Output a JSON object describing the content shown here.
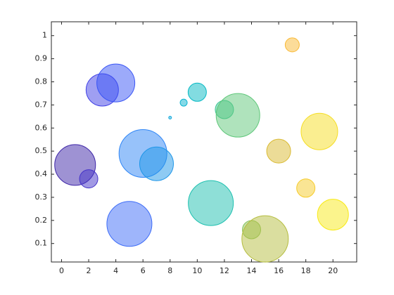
{
  "chart_data": {
    "type": "scatter",
    "x": [
      1,
      2,
      3,
      4,
      5,
      6,
      7,
      8,
      9,
      10,
      11,
      12,
      13,
      14,
      15,
      16,
      17,
      18,
      19,
      20
    ],
    "y": [
      0.44,
      0.38,
      0.765,
      0.795,
      0.185,
      0.49,
      0.445,
      0.645,
      0.71,
      0.755,
      0.275,
      0.68,
      0.655,
      0.16,
      0.12,
      0.5,
      0.96,
      0.34,
      0.585,
      0.225
    ],
    "sizes": [
      841,
      169,
      529,
      729,
      1024,
      1156,
      576,
      4,
      25,
      169,
      1024,
      169,
      961,
      169,
      1089,
      289,
      100,
      169,
      676,
      484
    ],
    "colors": [
      "#3e26a8",
      "#4433c9",
      "#3f3fe6",
      "#3a55f5",
      "#3d6cf7",
      "#2f86f6",
      "#1e96e8",
      "#14a9dc",
      "#0ab4d0",
      "#06b9c4",
      "#1ec0b0",
      "#3cc592",
      "#5fc77a",
      "#8ac25c",
      "#b5bd3f",
      "#d9b930",
      "#f9b934",
      "#f6cb2a",
      "#f5dd22",
      "#f8ea1a"
    ],
    "alpha": 0.5,
    "xlim": [
      -0.75,
      21.75
    ],
    "ylim": [
      0.02,
      1.06
    ],
    "xticks": [
      0,
      2,
      4,
      6,
      8,
      10,
      12,
      14,
      16,
      18,
      20
    ],
    "yticks": [
      0.1,
      0.2,
      0.3,
      0.4,
      0.5,
      0.6,
      0.7,
      0.8,
      0.9,
      1
    ]
  }
}
